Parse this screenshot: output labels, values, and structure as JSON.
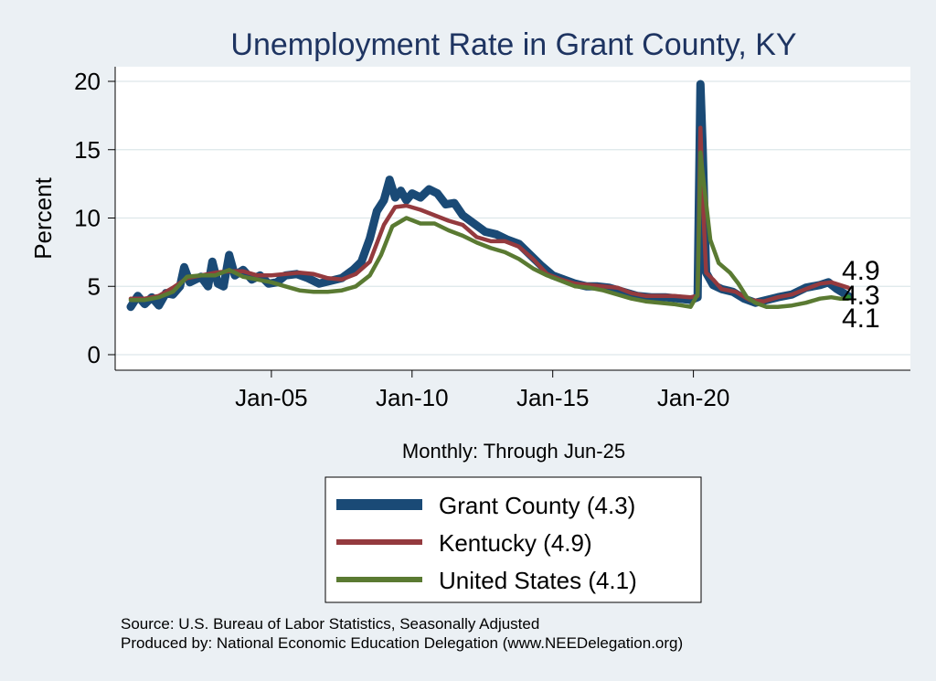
{
  "chart_data": {
    "type": "line",
    "title": "Unemployment Rate in Grant  County, KY",
    "ylabel": "Percent",
    "xlabel": "Monthly: Through Jun-25",
    "ylim": [
      0,
      20
    ],
    "yticks": [
      0,
      5,
      10,
      15,
      20
    ],
    "xticks": [
      {
        "label": "Jan-05",
        "x": 2005.0
      },
      {
        "label": "Jan-10",
        "x": 2010.0
      },
      {
        "label": "Jan-15",
        "x": 2015.0
      },
      {
        "label": "Jan-20",
        "x": 2020.0
      }
    ],
    "xlim": [
      2000.0,
      2025.5
    ],
    "grid": "horizontal",
    "legend": "bottom-center",
    "end_labels": [
      "4.9",
      "4.3",
      "4.1"
    ],
    "colors": {
      "grant": "#1a4a76",
      "kentucky": "#943a3e",
      "us": "#5a7a32"
    },
    "series": [
      {
        "name": "Grant  County (4.3)",
        "key": "grant",
        "points": [
          [
            2000.0,
            3.5
          ],
          [
            2000.25,
            4.3
          ],
          [
            2000.5,
            3.7
          ],
          [
            2000.75,
            4.2
          ],
          [
            2001.0,
            3.6
          ],
          [
            2001.25,
            4.5
          ],
          [
            2001.5,
            4.4
          ],
          [
            2001.75,
            5.0
          ],
          [
            2001.9,
            6.4
          ],
          [
            2002.1,
            5.3
          ],
          [
            2002.5,
            5.7
          ],
          [
            2002.75,
            5.0
          ],
          [
            2002.9,
            6.8
          ],
          [
            2003.1,
            5.2
          ],
          [
            2003.3,
            5.0
          ],
          [
            2003.5,
            7.3
          ],
          [
            2003.7,
            5.8
          ],
          [
            2004.0,
            6.2
          ],
          [
            2004.3,
            5.5
          ],
          [
            2004.6,
            5.8
          ],
          [
            2004.9,
            5.2
          ],
          [
            2005.2,
            5.3
          ],
          [
            2005.5,
            5.8
          ],
          [
            2005.9,
            5.9
          ],
          [
            2006.3,
            5.6
          ],
          [
            2006.7,
            5.2
          ],
          [
            2007.1,
            5.4
          ],
          [
            2007.5,
            5.6
          ],
          [
            2007.9,
            6.2
          ],
          [
            2008.2,
            6.8
          ],
          [
            2008.5,
            8.5
          ],
          [
            2008.75,
            10.5
          ],
          [
            2009.0,
            11.3
          ],
          [
            2009.2,
            12.8
          ],
          [
            2009.4,
            11.5
          ],
          [
            2009.6,
            12.0
          ],
          [
            2009.8,
            11.3
          ],
          [
            2010.0,
            11.8
          ],
          [
            2010.3,
            11.5
          ],
          [
            2010.6,
            12.1
          ],
          [
            2010.9,
            11.8
          ],
          [
            2011.2,
            11.0
          ],
          [
            2011.5,
            11.1
          ],
          [
            2011.8,
            10.2
          ],
          [
            2012.2,
            9.6
          ],
          [
            2012.6,
            9.0
          ],
          [
            2013.0,
            8.8
          ],
          [
            2013.4,
            8.4
          ],
          [
            2013.8,
            8.1
          ],
          [
            2014.2,
            7.3
          ],
          [
            2014.6,
            6.5
          ],
          [
            2015.0,
            5.8
          ],
          [
            2015.4,
            5.5
          ],
          [
            2015.8,
            5.2
          ],
          [
            2016.2,
            5.0
          ],
          [
            2016.6,
            5.0
          ],
          [
            2017.0,
            4.9
          ],
          [
            2017.5,
            4.6
          ],
          [
            2018.0,
            4.3
          ],
          [
            2018.5,
            4.2
          ],
          [
            2019.0,
            4.2
          ],
          [
            2019.5,
            4.1
          ],
          [
            2019.9,
            4.0
          ],
          [
            2020.15,
            4.2
          ],
          [
            2020.25,
            19.8
          ],
          [
            2020.33,
            15.0
          ],
          [
            2020.45,
            6.0
          ],
          [
            2020.7,
            5.1
          ],
          [
            2021.0,
            4.8
          ],
          [
            2021.4,
            4.6
          ],
          [
            2021.8,
            4.1
          ],
          [
            2022.2,
            3.8
          ],
          [
            2022.6,
            4.0
          ],
          [
            2023.0,
            4.2
          ],
          [
            2023.5,
            4.4
          ],
          [
            2024.0,
            4.9
          ],
          [
            2024.5,
            5.1
          ],
          [
            2024.8,
            5.3
          ],
          [
            2025.1,
            4.8
          ],
          [
            2025.5,
            4.3
          ]
        ]
      },
      {
        "name": "Kentucky (4.9)",
        "key": "kentucky",
        "points": [
          [
            2000.0,
            4.1
          ],
          [
            2000.5,
            4.1
          ],
          [
            2001.0,
            4.3
          ],
          [
            2001.5,
            4.9
          ],
          [
            2002.0,
            5.6
          ],
          [
            2002.5,
            5.8
          ],
          [
            2003.0,
            6.0
          ],
          [
            2003.5,
            6.1
          ],
          [
            2004.0,
            6.1
          ],
          [
            2004.5,
            5.8
          ],
          [
            2005.0,
            5.8
          ],
          [
            2005.5,
            5.9
          ],
          [
            2006.0,
            6.0
          ],
          [
            2006.5,
            5.9
          ],
          [
            2007.0,
            5.6
          ],
          [
            2007.5,
            5.5
          ],
          [
            2008.0,
            5.9
          ],
          [
            2008.5,
            6.8
          ],
          [
            2009.0,
            9.5
          ],
          [
            2009.4,
            10.8
          ],
          [
            2009.8,
            10.9
          ],
          [
            2010.3,
            10.6
          ],
          [
            2010.8,
            10.2
          ],
          [
            2011.3,
            9.8
          ],
          [
            2011.8,
            9.5
          ],
          [
            2012.3,
            8.6
          ],
          [
            2012.8,
            8.3
          ],
          [
            2013.3,
            8.3
          ],
          [
            2013.8,
            7.9
          ],
          [
            2014.3,
            7.0
          ],
          [
            2014.8,
            5.9
          ],
          [
            2015.3,
            5.5
          ],
          [
            2015.8,
            5.2
          ],
          [
            2016.3,
            5.1
          ],
          [
            2016.8,
            5.0
          ],
          [
            2017.3,
            4.9
          ],
          [
            2017.8,
            4.5
          ],
          [
            2018.3,
            4.3
          ],
          [
            2018.8,
            4.3
          ],
          [
            2019.3,
            4.3
          ],
          [
            2019.9,
            4.2
          ],
          [
            2020.15,
            4.3
          ],
          [
            2020.25,
            16.6
          ],
          [
            2020.33,
            11.5
          ],
          [
            2020.45,
            6.0
          ],
          [
            2020.7,
            5.5
          ],
          [
            2021.0,
            4.8
          ],
          [
            2021.5,
            4.6
          ],
          [
            2022.0,
            4.0
          ],
          [
            2022.5,
            3.9
          ],
          [
            2023.0,
            4.2
          ],
          [
            2023.5,
            4.4
          ],
          [
            2024.0,
            4.8
          ],
          [
            2024.5,
            5.2
          ],
          [
            2024.9,
            5.3
          ],
          [
            2025.5,
            4.9
          ]
        ]
      },
      {
        "name": "United States (4.1)",
        "key": "us",
        "points": [
          [
            2000.0,
            4.0
          ],
          [
            2000.5,
            4.0
          ],
          [
            2001.0,
            4.2
          ],
          [
            2001.5,
            4.6
          ],
          [
            2002.0,
            5.7
          ],
          [
            2002.5,
            5.8
          ],
          [
            2003.0,
            5.8
          ],
          [
            2003.5,
            6.2
          ],
          [
            2004.0,
            5.7
          ],
          [
            2004.5,
            5.5
          ],
          [
            2005.0,
            5.3
          ],
          [
            2005.5,
            5.0
          ],
          [
            2006.0,
            4.7
          ],
          [
            2006.5,
            4.6
          ],
          [
            2007.0,
            4.6
          ],
          [
            2007.5,
            4.7
          ],
          [
            2008.0,
            5.0
          ],
          [
            2008.5,
            5.8
          ],
          [
            2008.9,
            7.3
          ],
          [
            2009.3,
            9.4
          ],
          [
            2009.8,
            10.0
          ],
          [
            2010.3,
            9.6
          ],
          [
            2010.8,
            9.6
          ],
          [
            2011.3,
            9.1
          ],
          [
            2011.8,
            8.7
          ],
          [
            2012.3,
            8.2
          ],
          [
            2012.8,
            7.8
          ],
          [
            2013.3,
            7.5
          ],
          [
            2013.8,
            7.0
          ],
          [
            2014.3,
            6.3
          ],
          [
            2014.8,
            5.8
          ],
          [
            2015.3,
            5.4
          ],
          [
            2015.8,
            5.0
          ],
          [
            2016.3,
            4.9
          ],
          [
            2016.8,
            4.7
          ],
          [
            2017.3,
            4.4
          ],
          [
            2017.8,
            4.1
          ],
          [
            2018.3,
            3.9
          ],
          [
            2018.8,
            3.8
          ],
          [
            2019.3,
            3.7
          ],
          [
            2019.9,
            3.5
          ],
          [
            2020.15,
            4.4
          ],
          [
            2020.25,
            14.8
          ],
          [
            2020.33,
            13.2
          ],
          [
            2020.45,
            11.1
          ],
          [
            2020.6,
            8.4
          ],
          [
            2020.9,
            6.7
          ],
          [
            2021.3,
            6.0
          ],
          [
            2021.6,
            5.2
          ],
          [
            2021.9,
            4.2
          ],
          [
            2022.2,
            3.8
          ],
          [
            2022.6,
            3.5
          ],
          [
            2023.0,
            3.5
          ],
          [
            2023.5,
            3.6
          ],
          [
            2024.0,
            3.8
          ],
          [
            2024.5,
            4.1
          ],
          [
            2024.9,
            4.2
          ],
          [
            2025.2,
            4.1
          ],
          [
            2025.5,
            4.1
          ]
        ]
      }
    ],
    "source_lines": [
      "Source: U.S. Bureau of Labor Statistics, Seasonally Adjusted",
      "Produced by: National Economic Education Delegation (www.NEEDelegation.org)"
    ]
  }
}
